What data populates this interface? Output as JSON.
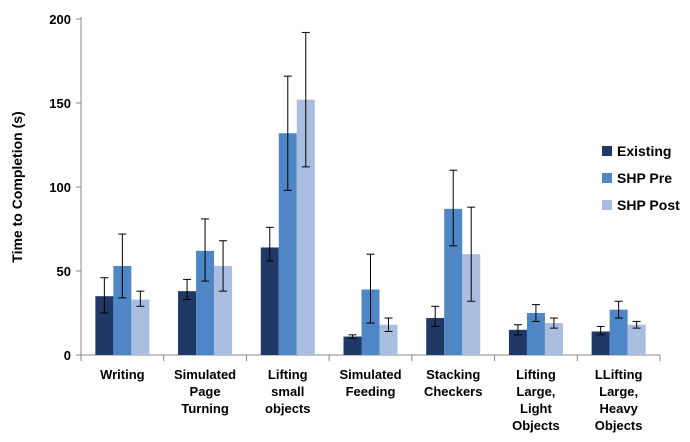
{
  "chart_data": {
    "type": "bar",
    "title": "",
    "xlabel": "",
    "ylabel": "Time to Completion (s)",
    "ylim": [
      0,
      200
    ],
    "yticks": [
      0,
      50,
      100,
      150,
      200
    ],
    "grid": false,
    "legend_position": "right",
    "categories": [
      [
        "Writing"
      ],
      [
        "Simulated",
        "Page",
        "Turning"
      ],
      [
        "Lifting",
        "small",
        "objects"
      ],
      [
        "Simulated",
        "Feeding"
      ],
      [
        "Stacking",
        "Checkers"
      ],
      [
        "Lifting",
        "Large,",
        "Light",
        "Objects"
      ],
      [
        "LLifting",
        "Large,",
        "Heavy",
        "Objects"
      ]
    ],
    "series": [
      {
        "name": "Existing",
        "color": "#1f3864",
        "values": [
          35,
          38,
          64,
          11,
          22,
          15,
          14
        ],
        "error_low": [
          25,
          33,
          56,
          10,
          17,
          12,
          12
        ],
        "error_high": [
          46,
          45,
          76,
          12,
          29,
          18,
          17
        ]
      },
      {
        "name": "SHP Pre",
        "color": "#4f86c6",
        "values": [
          53,
          62,
          132,
          39,
          87,
          25,
          27
        ],
        "error_low": [
          34,
          44,
          98,
          19,
          65,
          20,
          22
        ],
        "error_high": [
          72,
          81,
          166,
          60,
          110,
          30,
          32
        ]
      },
      {
        "name": "SHP Post",
        "color": "#a9bde0",
        "values": [
          33,
          53,
          152,
          18,
          60,
          19,
          18
        ],
        "error_low": [
          29,
          38,
          112,
          14,
          32,
          16,
          16
        ],
        "error_high": [
          38,
          68,
          192,
          22,
          88,
          22,
          20
        ]
      }
    ]
  }
}
